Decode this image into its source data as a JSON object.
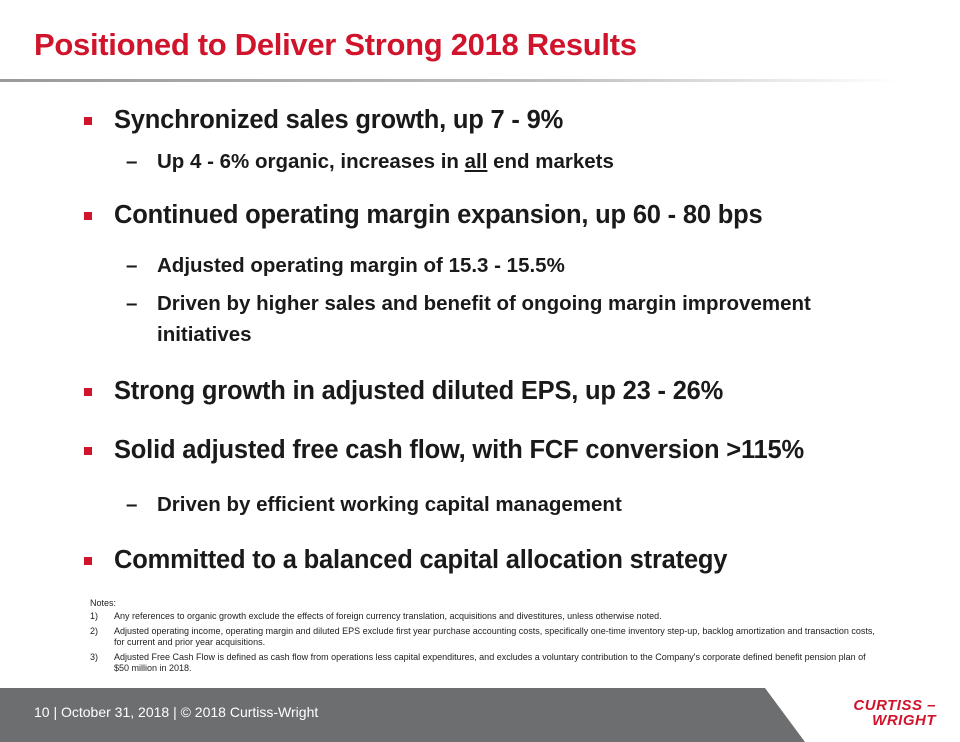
{
  "title": "Positioned to Deliver Strong 2018 Results",
  "bullets": [
    {
      "text": "Synchronized sales growth, up 7 - 9%",
      "sub": [
        {
          "pre": "Up 4 - 6% organic, increases in ",
          "emph": "all",
          "post": " end markets"
        }
      ]
    },
    {
      "text": "Continued operating margin expansion, up 60 - 80 bps",
      "sub": [
        {
          "text": "Adjusted operating margin of 15.3 - 15.5%"
        },
        {
          "line1": "Driven by higher sales and benefit of ongoing margin improvement",
          "line2": "initiatives"
        }
      ]
    },
    {
      "text": "Strong growth in adjusted diluted EPS, up 23 - 26%"
    },
    {
      "text": "Solid adjusted free cash flow, with FCF conversion >115%",
      "sub": [
        {
          "text": "Driven by efficient working capital management"
        }
      ]
    },
    {
      "text": "Committed to a balanced capital allocation strategy"
    }
  ],
  "dash": "–",
  "notes": {
    "heading": "Notes:",
    "items": [
      {
        "num": "1)",
        "text": "Any references to organic growth exclude the effects of foreign currency translation, acquisitions and divestitures, unless otherwise noted."
      },
      {
        "num": "2)",
        "text": "Adjusted operating income, operating margin and diluted EPS exclude first year purchase accounting costs, specifically one-time inventory step-up, backlog amortization and transaction costs, for current and prior year acquisitions."
      },
      {
        "num": "3)",
        "text": "Adjusted Free Cash Flow is defined as cash flow from operations less capital expenditures, and excludes a voluntary contribution to the Company's corporate defined benefit pension plan of $50 million in 2018."
      }
    ]
  },
  "footer": {
    "text": "10  |  October 31, 2018  |  © 2018 Curtiss-Wright",
    "logo_line1": "CURTISS –",
    "logo_line2": "WRIGHT"
  },
  "colors": {
    "accent": "#d0142c",
    "footer_bg": "#6d6e70"
  }
}
